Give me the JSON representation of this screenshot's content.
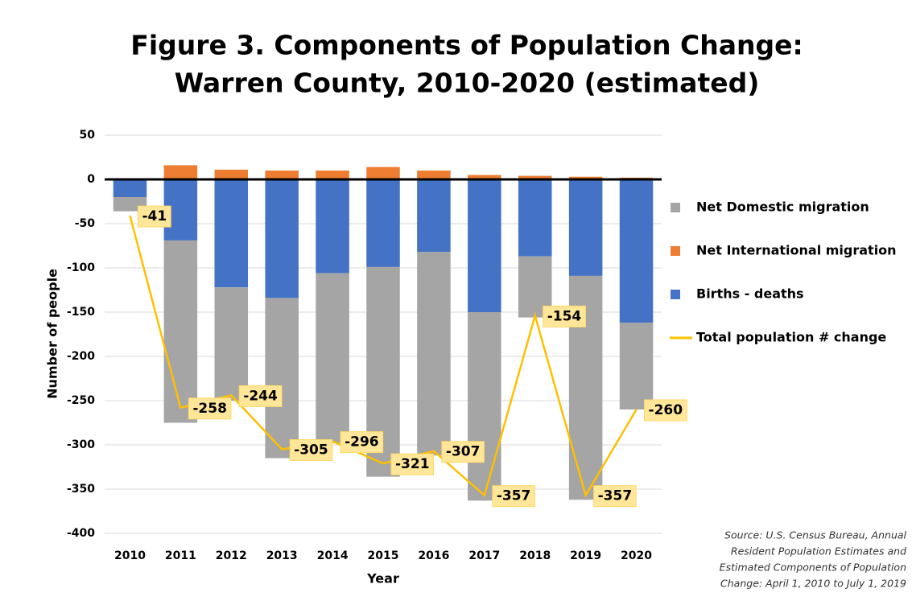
{
  "chart_data": {
    "type": "bar",
    "title": [
      "Figure 3. Components of Population Change:",
      "Warren County, 2010-2020 (estimated)"
    ],
    "x_label": "Year",
    "y_label": "Number of people",
    "categories": [
      "2010",
      "2011",
      "2012",
      "2013",
      "2014",
      "2015",
      "2016",
      "2017",
      "2018",
      "2019",
      "2020"
    ],
    "series": [
      {
        "name": "Net Domestic migration",
        "color": "#a5a5a5",
        "type": "bar",
        "values": [
          -16,
          -206,
          -128,
          -181,
          -192,
          -237,
          -230,
          -213,
          -69,
          -253,
          -98
        ]
      },
      {
        "name": "Net International migration",
        "color": "#ed7d31",
        "type": "bar",
        "values": [
          0,
          16,
          11,
          10,
          10,
          14,
          10,
          5,
          4,
          3,
          2
        ]
      },
      {
        "name": "Births - deaths",
        "color": "#4472c4",
        "type": "bar",
        "values": [
          -20,
          -69,
          -122,
          -134,
          -106,
          -99,
          -82,
          -150,
          -87,
          -109,
          -162
        ]
      },
      {
        "name": "Total population # change",
        "color": "#ffc000",
        "type": "line",
        "values": [
          -41,
          -258,
          -244,
          -305,
          -296,
          -321,
          -307,
          -357,
          -154,
          -357,
          -260
        ]
      }
    ],
    "ylim": [
      -400,
      50
    ],
    "yticks": [
      -400,
      -350,
      -300,
      -250,
      -200,
      -150,
      -100,
      -50,
      0,
      50
    ],
    "grid": true,
    "source": [
      "Source: U.S. Census Bureau, Annual",
      "Resident Population Estimates and",
      "Estimated Components of Population",
      "Change: April 1, 2010 to July 1, 2019"
    ]
  }
}
